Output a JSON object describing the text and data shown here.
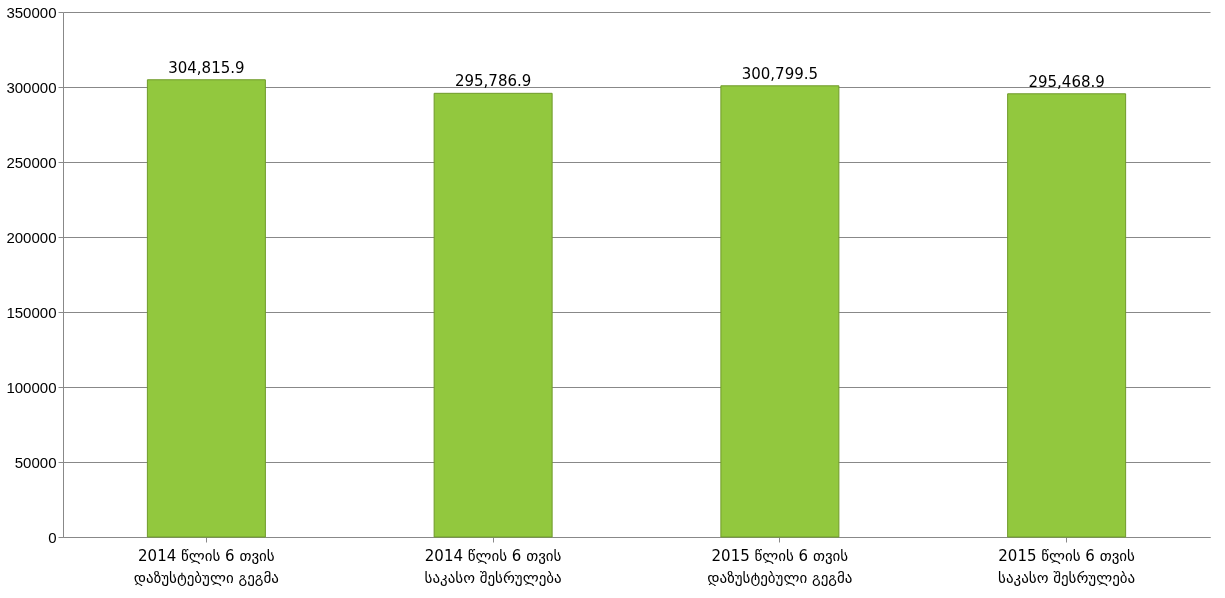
{
  "chart_data": {
    "type": "bar",
    "categories": [
      "2014 წლის 6 თვის დაზუსტებული გეგმა",
      "2014 წლის 6 თვის საკასო შესრულება",
      "2015 წლის 6 თვის დაზუსტებული გეგმა",
      "2015 წლის 6 თვის საკასო შესრულება"
    ],
    "values": [
      304815.9,
      295786.9,
      300799.5,
      295468.9
    ],
    "color": "#92c83e",
    "ylim": [
      0,
      350000
    ],
    "yticks": [
      0,
      50000,
      100000,
      150000,
      200000,
      250000,
      300000,
      350000
    ],
    "grid": "y",
    "value_labels": [
      "304,815.9",
      "295,786.9",
      "300,799.5",
      "295,468.9"
    ]
  }
}
